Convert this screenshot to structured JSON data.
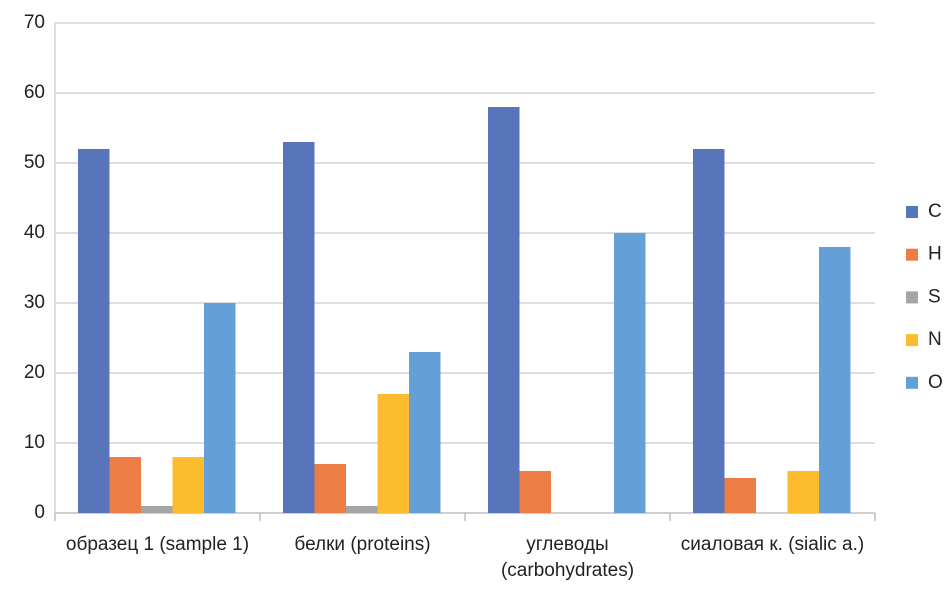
{
  "chart_data": {
    "type": "bar",
    "categories": [
      "образец 1 (sample 1)",
      "белки (proteins)",
      "углеводы (carbohydrates)",
      "сиаловая к. (sialic a.)"
    ],
    "series": [
      {
        "name": "C",
        "color": "#5875bb",
        "values": [
          52,
          53,
          58,
          52
        ]
      },
      {
        "name": "H",
        "color": "#ec7d45",
        "values": [
          8,
          7,
          6,
          5
        ]
      },
      {
        "name": "S",
        "color": "#a5a5a5",
        "values": [
          1,
          1,
          0,
          0
        ]
      },
      {
        "name": "N",
        "color": "#fdbb2e",
        "values": [
          8,
          17,
          0,
          6
        ]
      },
      {
        "name": "O",
        "color": "#659fd8",
        "values": [
          30,
          23,
          40,
          38
        ]
      }
    ],
    "ylim": [
      0,
      70
    ],
    "yticks": [
      0,
      10,
      20,
      30,
      40,
      50,
      60,
      70
    ],
    "grid": true,
    "legend": "right"
  }
}
